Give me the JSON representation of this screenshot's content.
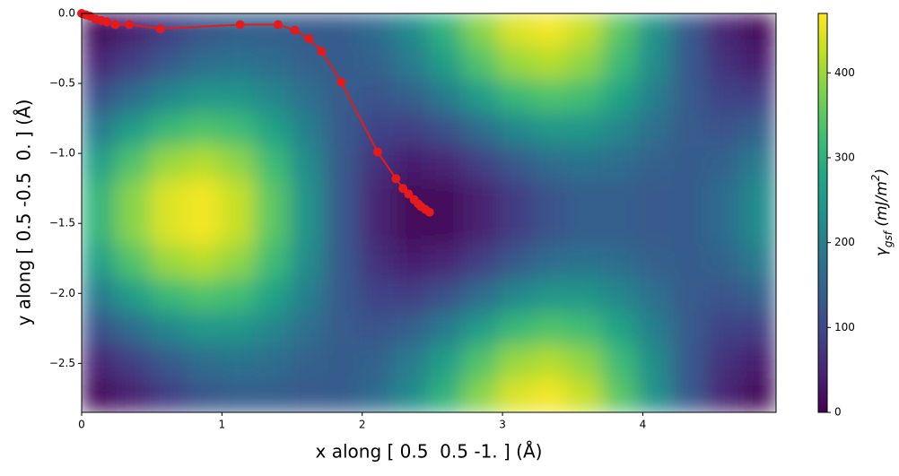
{
  "chart_data": {
    "type": "heatmap",
    "x_label": "x along [ 0.5  0.5 -1. ] (Å)",
    "y_label": "y along [ 0.5 -0.5  0. ] (Å)",
    "colorbar_label": [
      "γ",
      "gsf",
      " (mJ/m",
      "2",
      ")"
    ],
    "colormap": "viridis",
    "xlim": [
      0,
      4.95
    ],
    "ylim": [
      -2.85,
      0
    ],
    "zlim": [
      0,
      470
    ],
    "xticks": [
      0,
      1,
      2,
      3,
      4
    ],
    "yticks": [
      {
        "value": 0,
        "label": "0.0"
      },
      {
        "value": -0.5,
        "label": "−0.5"
      },
      {
        "value": -1,
        "label": "−1.0"
      },
      {
        "value": -1.5,
        "label": "−1.5"
      },
      {
        "value": -2,
        "label": "−2.0"
      },
      {
        "value": -2.5,
        "label": "−2.5"
      }
    ],
    "zticks": [
      0,
      100,
      200,
      300,
      400
    ],
    "z": [
      [
        10,
        42,
        85,
        121,
        139,
        139,
        132,
        136,
        166,
        224,
        304,
        386,
        446,
        463,
        429,
        348,
        240,
        133,
        50,
        9
      ],
      [
        49,
        88,
        133,
        167,
        178,
        167,
        147,
        136,
        150,
        195,
        264,
        340,
        398,
        417,
        390,
        320,
        226,
        133,
        66,
        38
      ],
      [
        117,
        167,
        217,
        246,
        245,
        215,
        172,
        135,
        123,
        145,
        196,
        260,
        314,
        338,
        323,
        271,
        201,
        134,
        93,
        87
      ],
      [
        196,
        260,
        314,
        338,
        323,
        271,
        201,
        134,
        93,
        87,
        117,
        167,
        217,
        246,
        245,
        215,
        172,
        135,
        123,
        145
      ],
      [
        264,
        340,
        398,
        417,
        390,
        320,
        226,
        133,
        66,
        38,
        49,
        88,
        133,
        167,
        178,
        167,
        147,
        136,
        150,
        195
      ],
      [
        304,
        386,
        446,
        463,
        429,
        348,
        240,
        133,
        50,
        9,
        10,
        42,
        85,
        121,
        139,
        139,
        132,
        136,
        166,
        224
      ],
      [
        304,
        386,
        446,
        463,
        429,
        348,
        240,
        133,
        50,
        9,
        10,
        42,
        85,
        121,
        139,
        139,
        132,
        136,
        166,
        224
      ],
      [
        264,
        340,
        398,
        417,
        390,
        320,
        226,
        133,
        66,
        38,
        49,
        88,
        133,
        167,
        178,
        167,
        147,
        136,
        150,
        195
      ],
      [
        196,
        260,
        314,
        338,
        323,
        271,
        201,
        134,
        93,
        87,
        117,
        167,
        217,
        246,
        245,
        215,
        172,
        135,
        123,
        145
      ],
      [
        117,
        167,
        217,
        246,
        245,
        215,
        172,
        135,
        123,
        145,
        196,
        260,
        314,
        338,
        323,
        271,
        201,
        134,
        93,
        87
      ],
      [
        49,
        88,
        133,
        167,
        178,
        167,
        147,
        136,
        150,
        195,
        264,
        340,
        398,
        417,
        390,
        320,
        226,
        133,
        66,
        38
      ],
      [
        10,
        42,
        85,
        121,
        139,
        139,
        132,
        136,
        166,
        224,
        304,
        386,
        446,
        463,
        429,
        348,
        240,
        133,
        50,
        9
      ]
    ],
    "path": {
      "color": "#e41a1c",
      "x": [
        0,
        0.03,
        0.06,
        0.1,
        0.14,
        0.18,
        0.24,
        0.34,
        0.56,
        1.13,
        1.4,
        1.52,
        1.62,
        1.71,
        1.85,
        2.11,
        2.24,
        2.29,
        2.33,
        2.37,
        2.4,
        2.42,
        2.45,
        2.48
      ],
      "y": [
        0,
        -0.01,
        -0.02,
        -0.04,
        -0.05,
        -0.06,
        -0.08,
        -0.08,
        -0.11,
        -0.08,
        -0.08,
        -0.12,
        -0.18,
        -0.27,
        -0.49,
        -0.99,
        -1.18,
        -1.25,
        -1.29,
        -1.33,
        -1.36,
        -1.38,
        -1.4,
        -1.42
      ]
    }
  }
}
